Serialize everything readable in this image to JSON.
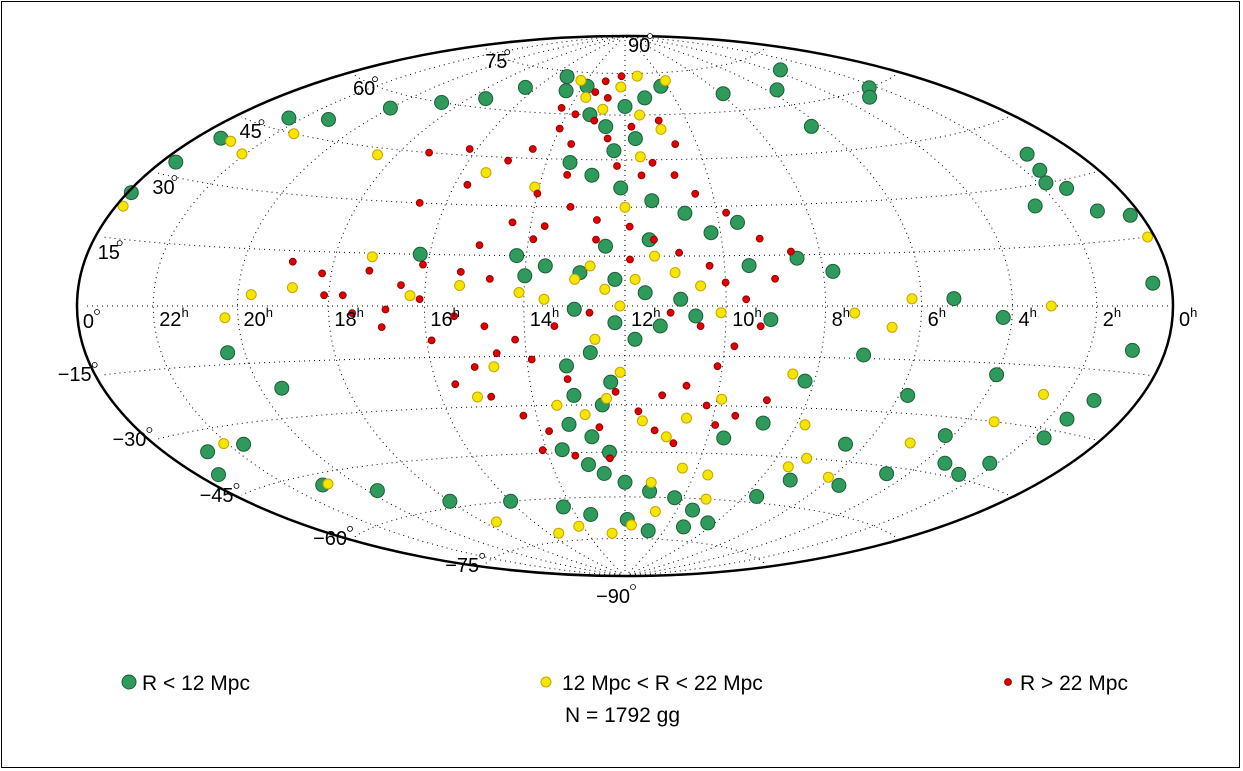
{
  "chart_data": {
    "type": "scatter",
    "projection": "hammer-aitoff",
    "grid": true,
    "ra_ticks": [
      {
        "hours": 0,
        "text": "0",
        "sup": "h"
      },
      {
        "hours": 2,
        "text": "2",
        "sup": "h"
      },
      {
        "hours": 4,
        "text": "4",
        "sup": "h"
      },
      {
        "hours": 6,
        "text": "6",
        "sup": "h"
      },
      {
        "hours": 8,
        "text": "8",
        "sup": "h"
      },
      {
        "hours": 10,
        "text": "10",
        "sup": "h"
      },
      {
        "hours": 12,
        "text": "12",
        "sup": "h"
      },
      {
        "hours": 14,
        "text": "14",
        "sup": "h"
      },
      {
        "hours": 16,
        "text": "16",
        "sup": "h"
      },
      {
        "hours": 18,
        "text": "18",
        "sup": "h"
      },
      {
        "hours": 20,
        "text": "20",
        "sup": "h"
      },
      {
        "hours": 22,
        "text": "22",
        "sup": "h"
      }
    ],
    "dec_ticks": [
      {
        "dec": 90,
        "text": "90"
      },
      {
        "dec": 75,
        "text": "75"
      },
      {
        "dec": 60,
        "text": "60"
      },
      {
        "dec": 45,
        "text": "45"
      },
      {
        "dec": 30,
        "text": "30"
      },
      {
        "dec": 15,
        "text": "15"
      },
      {
        "dec": 0,
        "text": "0"
      },
      {
        "dec": -15,
        "text": "−15"
      },
      {
        "dec": -30,
        "text": "−30"
      },
      {
        "dec": -45,
        "text": "−45"
      },
      {
        "dec": -60,
        "text": "−60"
      },
      {
        "dec": -75,
        "text": "−75"
      },
      {
        "dec": -90,
        "text": "−90"
      }
    ],
    "legend": {
      "placement": "bottom",
      "items": [
        {
          "label": "R < 12 Mpc",
          "color": "#2e9a5c"
        },
        {
          "label": "12 Mpc < R < 22 Mpc",
          "color": "#f5e600"
        },
        {
          "label": "R > 22 Mpc",
          "color": "#dd0000"
        }
      ],
      "note": "N = 1792 gg"
    },
    "series": [
      {
        "name": "R < 12 Mpc",
        "color": "#2e9a5c",
        "points": [
          [
            0.3,
            20
          ],
          [
            0.5,
            5
          ],
          [
            0.9,
            -10
          ],
          [
            1.2,
            -22
          ],
          [
            1.5,
            -27
          ],
          [
            1.6,
            -32
          ],
          [
            2.2,
            -40
          ],
          [
            2.6,
            -44
          ],
          [
            3.4,
            -42
          ],
          [
            4.2,
            -35
          ],
          [
            4.6,
            -47
          ],
          [
            1.4,
            37
          ],
          [
            1.6,
            33
          ],
          [
            1.8,
            30
          ],
          [
            1.4,
            28
          ],
          [
            2.6,
            25
          ],
          [
            2.3,
            60
          ],
          [
            3.0,
            58
          ],
          [
            3.6,
            70
          ],
          [
            1.1,
            22
          ],
          [
            6.3,
            53
          ],
          [
            5.6,
            65
          ],
          [
            7.9,
            66
          ],
          [
            5.3,
            2
          ],
          [
            4.2,
            -3
          ],
          [
            5.8,
            -25
          ],
          [
            4.0,
            -18
          ],
          [
            6.5,
            -40
          ],
          [
            5.5,
            -52
          ],
          [
            7.1,
            -52
          ],
          [
            7.6,
            -58
          ],
          [
            9.2,
            -70
          ],
          [
            8.3,
            -68
          ],
          [
            9.4,
            -64
          ],
          [
            10.3,
            -60
          ],
          [
            11.2,
            -58
          ],
          [
            12.0,
            -55
          ],
          [
            12.6,
            -52
          ],
          [
            13.0,
            -49
          ],
          [
            12.4,
            -45
          ],
          [
            13.6,
            -44
          ],
          [
            12.8,
            -40
          ],
          [
            13.3,
            -36
          ],
          [
            12.5,
            -30
          ],
          [
            13.1,
            -27
          ],
          [
            12.3,
            -23
          ],
          [
            13.2,
            -18
          ],
          [
            12.7,
            -14
          ],
          [
            11.8,
            -10
          ],
          [
            11.3,
            -6
          ],
          [
            10.6,
            -3
          ],
          [
            10.9,
            2
          ],
          [
            11.6,
            4
          ],
          [
            12.2,
            8
          ],
          [
            12.9,
            10
          ],
          [
            13.6,
            12
          ],
          [
            12.4,
            18
          ],
          [
            11.5,
            20
          ],
          [
            10.2,
            22
          ],
          [
            9.6,
            25
          ],
          [
            10.7,
            28
          ],
          [
            11.4,
            32
          ],
          [
            12.1,
            36
          ],
          [
            12.8,
            40
          ],
          [
            13.4,
            44
          ],
          [
            12.3,
            48
          ],
          [
            11.7,
            52
          ],
          [
            12.6,
            56
          ],
          [
            13.2,
            60
          ],
          [
            12.0,
            63
          ],
          [
            11.2,
            66
          ],
          [
            10.3,
            70
          ],
          [
            13.8,
            70
          ],
          [
            14.6,
            68
          ],
          [
            15.2,
            73
          ],
          [
            16.5,
            68
          ],
          [
            17.4,
            63
          ],
          [
            18.7,
            60
          ],
          [
            20.0,
            56
          ],
          [
            21.2,
            50
          ],
          [
            22.4,
            48
          ],
          [
            23.3,
            40
          ],
          [
            23.6,
            33
          ],
          [
            23.9,
            25
          ],
          [
            14.2,
            15
          ],
          [
            14.0,
            9
          ],
          [
            13.0,
            -1
          ],
          [
            12.2,
            -5
          ],
          [
            11.9,
            -68
          ],
          [
            10.8,
            -72
          ],
          [
            13.4,
            -66
          ],
          [
            14.3,
            -63
          ],
          [
            16.0,
            -60
          ],
          [
            18.0,
            -58
          ],
          [
            19.7,
            -52
          ],
          [
            21.0,
            -48
          ],
          [
            21.6,
            -35
          ],
          [
            19.5,
            -22
          ],
          [
            20.4,
            -12
          ],
          [
            22.8,
            -35
          ],
          [
            23.4,
            -40
          ],
          [
            8.8,
            -35
          ],
          [
            9.6,
            -40
          ],
          [
            8.2,
            -22
          ],
          [
            7.1,
            -14
          ],
          [
            9.1,
            -4
          ],
          [
            7.8,
            10
          ],
          [
            8.5,
            14
          ],
          [
            9.5,
            12
          ],
          [
            16.2,
            15
          ]
        ]
      },
      {
        "name": "12 Mpc < R < 22 Mpc",
        "color": "#f5e600",
        "points": [
          [
            0.2,
            15
          ],
          [
            23.8,
            22
          ],
          [
            22.1,
            38
          ],
          [
            21.5,
            45
          ],
          [
            22.9,
            40
          ],
          [
            3.1,
            0
          ],
          [
            6.6,
            -6
          ],
          [
            6.2,
            2
          ],
          [
            7.4,
            -2
          ],
          [
            8.5,
            -20
          ],
          [
            7.8,
            -35
          ],
          [
            7.2,
            -45
          ],
          [
            6.1,
            -50
          ],
          [
            4.9,
            -38
          ],
          [
            3.3,
            -30
          ],
          [
            2.6,
            -22
          ],
          [
            9.2,
            -60
          ],
          [
            10.8,
            -65
          ],
          [
            11.7,
            -70
          ],
          [
            12.7,
            -73
          ],
          [
            14.2,
            -70
          ],
          [
            15.5,
            -72
          ],
          [
            17.5,
            -66
          ],
          [
            20.8,
            -48
          ],
          [
            22.1,
            -34
          ],
          [
            12.0,
            30
          ],
          [
            11.6,
            46
          ],
          [
            10.9,
            55
          ],
          [
            11.5,
            60
          ],
          [
            12.8,
            62
          ],
          [
            13.6,
            66
          ],
          [
            14.3,
            72
          ],
          [
            12.2,
            70
          ],
          [
            11.3,
            74
          ],
          [
            9.9,
            72
          ],
          [
            14.1,
            36
          ],
          [
            15.4,
            40
          ],
          [
            18.5,
            43
          ],
          [
            17.2,
            14
          ],
          [
            15.3,
            6
          ],
          [
            14.1,
            4
          ],
          [
            13.6,
            2
          ],
          [
            13.0,
            8
          ],
          [
            12.7,
            12
          ],
          [
            12.4,
            5
          ],
          [
            12.1,
            0
          ],
          [
            11.8,
            8
          ],
          [
            11.4,
            15
          ],
          [
            11.0,
            10
          ],
          [
            10.5,
            6
          ],
          [
            10.1,
            -2
          ],
          [
            12.6,
            -10
          ],
          [
            12.1,
            -20
          ],
          [
            12.4,
            -28
          ],
          [
            12.9,
            -33
          ],
          [
            13.5,
            -30
          ],
          [
            11.6,
            -35
          ],
          [
            11.0,
            -40
          ],
          [
            10.6,
            -34
          ],
          [
            9.9,
            -28
          ],
          [
            16.3,
            3
          ],
          [
            18.8,
            5
          ],
          [
            19.7,
            3
          ],
          [
            20.3,
            -3
          ],
          [
            14.7,
            -18
          ],
          [
            15.2,
            -27
          ],
          [
            11.2,
            -55
          ],
          [
            10.4,
            -50
          ],
          [
            9.6,
            -52
          ],
          [
            7.5,
            -48
          ]
        ]
      },
      {
        "name": "R > 22 Mpc",
        "color": "#dd0000",
        "points": [
          [
            14.3,
            62
          ],
          [
            14.0,
            55
          ],
          [
            13.5,
            50
          ],
          [
            14.5,
            48
          ],
          [
            15.0,
            44
          ],
          [
            16.2,
            47
          ],
          [
            17.2,
            45
          ],
          [
            15.7,
            36
          ],
          [
            16.6,
            30
          ],
          [
            14.4,
            25
          ],
          [
            13.9,
            20
          ],
          [
            15.0,
            18
          ],
          [
            16.1,
            12
          ],
          [
            17.2,
            10
          ],
          [
            18.2,
            9
          ],
          [
            18.9,
            12
          ],
          [
            17.7,
            3
          ],
          [
            16.8,
            -1
          ],
          [
            16.1,
            2
          ],
          [
            15.4,
            -3
          ],
          [
            14.8,
            -6
          ],
          [
            14.2,
            -10
          ],
          [
            14.6,
            -14
          ],
          [
            15.1,
            -18
          ],
          [
            15.6,
            -23
          ],
          [
            14.9,
            -27
          ],
          [
            14.3,
            -33
          ],
          [
            13.8,
            -38
          ],
          [
            12.6,
            -37
          ],
          [
            11.7,
            -32
          ],
          [
            11.2,
            -27
          ],
          [
            10.7,
            -24
          ],
          [
            10.1,
            -18
          ],
          [
            9.8,
            -12
          ],
          [
            9.3,
            -6
          ],
          [
            9.6,
            2
          ],
          [
            9.0,
            8
          ],
          [
            8.6,
            16
          ],
          [
            9.2,
            20
          ],
          [
            9.8,
            28
          ],
          [
            10.4,
            34
          ],
          [
            10.8,
            40
          ],
          [
            11.3,
            44
          ],
          [
            10.6,
            50
          ],
          [
            10.9,
            58
          ],
          [
            11.8,
            56
          ],
          [
            12.5,
            52
          ],
          [
            13.0,
            58
          ],
          [
            13.7,
            60
          ],
          [
            12.7,
            66
          ],
          [
            12.2,
            74
          ],
          [
            13.0,
            72
          ],
          [
            13.3,
            68
          ],
          [
            11.6,
            40
          ],
          [
            12.2,
            43
          ],
          [
            13.4,
            40
          ],
          [
            14.0,
            34
          ],
          [
            13.2,
            30
          ],
          [
            12.6,
            26
          ],
          [
            11.9,
            24
          ],
          [
            11.4,
            20
          ],
          [
            10.9,
            16
          ],
          [
            10.3,
            12
          ],
          [
            10.0,
            7
          ],
          [
            12.7,
            -2
          ],
          [
            13.4,
            -6
          ],
          [
            13.9,
            -16
          ],
          [
            13.2,
            -22
          ],
          [
            12.2,
            -26
          ],
          [
            11.3,
            -38
          ],
          [
            10.8,
            -42
          ],
          [
            10.2,
            -30
          ],
          [
            9.5,
            -33
          ],
          [
            15.3,
            10
          ],
          [
            16.5,
            6
          ],
          [
            17.5,
            -2
          ],
          [
            18.1,
            3
          ],
          [
            15.9,
            -10
          ],
          [
            16.9,
            -6
          ],
          [
            14.1,
            -44
          ],
          [
            13.3,
            -46
          ],
          [
            12.4,
            -47
          ],
          [
            8.9,
            -28
          ],
          [
            9.9,
            -36
          ],
          [
            10.5,
            -6
          ],
          [
            11.1,
            -2
          ],
          [
            11.9,
            14
          ],
          [
            12.6,
            20
          ],
          [
            14.7,
            8
          ],
          [
            13.7,
            24
          ]
        ]
      }
    ]
  }
}
